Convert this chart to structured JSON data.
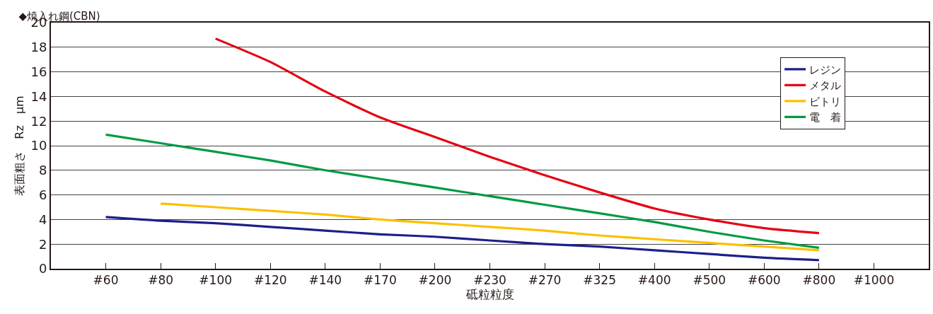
{
  "chart_data": {
    "type": "line",
    "title": "◆焼入れ鋼(CBN)",
    "xlabel": "砥粒粒度",
    "ylabel": "表面粗さ　Rz　μm",
    "categories": [
      "#60",
      "#80",
      "#100",
      "#120",
      "#140",
      "#170",
      "#200",
      "#230",
      "#270",
      "#325",
      "#400",
      "#500",
      "#600",
      "#800",
      "#1000"
    ],
    "ylim": [
      0,
      20
    ],
    "yticks": [
      0,
      2,
      4,
      6,
      8,
      10,
      12,
      14,
      16,
      18,
      20
    ],
    "grid": "y",
    "legend": "top right",
    "line_style": "solid",
    "series": [
      {
        "name": "レジン",
        "color": "#1c1f8a",
        "values": [
          4.2,
          3.9,
          3.7,
          3.4,
          3.1,
          2.8,
          2.6,
          2.3,
          2.0,
          1.8,
          1.5,
          1.2,
          0.9,
          0.7,
          null
        ]
      },
      {
        "name": "メタル",
        "color": "#e60012",
        "values": [
          null,
          null,
          18.7,
          16.8,
          14.4,
          12.3,
          10.7,
          9.1,
          7.6,
          6.2,
          4.9,
          4.0,
          3.3,
          2.9,
          null
        ]
      },
      {
        "name": "ビトリ",
        "color": "#fcc000",
        "values": [
          null,
          5.3,
          5.0,
          4.7,
          4.4,
          4.0,
          3.7,
          3.4,
          3.1,
          2.7,
          2.4,
          2.1,
          1.8,
          1.5,
          null
        ]
      },
      {
        "name": "電　着",
        "color": "#009a44",
        "values": [
          10.9,
          10.2,
          9.5,
          8.8,
          8.0,
          7.3,
          6.6,
          5.9,
          5.2,
          4.5,
          3.8,
          3.0,
          2.3,
          1.7,
          null
        ]
      }
    ]
  }
}
